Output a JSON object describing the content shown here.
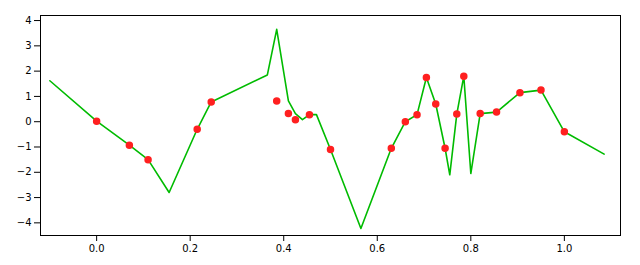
{
  "chart_data": {
    "type": "line",
    "grid": false,
    "xlim": [
      -0.12,
      1.12
    ],
    "ylim": [
      -4.5,
      4.2
    ],
    "xticks": [
      {
        "value": 0.0,
        "label": "0.0"
      },
      0.2,
      0.4,
      0.6,
      0.8,
      {
        "value": 1.0,
        "label": "1.0"
      }
    ],
    "yticks": [
      -4,
      -3,
      -2,
      -1,
      0,
      1,
      2,
      3,
      4
    ],
    "series": [
      {
        "type": "line",
        "color": "#00bb00",
        "line_style": "solid",
        "x": [
          -0.1,
          0.0,
          0.07,
          0.11,
          0.155,
          0.215,
          0.245,
          0.365,
          0.385,
          0.41,
          0.425,
          0.44,
          0.455,
          0.47,
          0.5,
          0.565,
          0.63,
          0.66,
          0.685,
          0.705,
          0.725,
          0.745,
          0.755,
          0.77,
          0.785,
          0.8,
          0.82,
          0.855,
          0.905,
          0.95,
          1.0,
          1.085
        ],
        "values": [
          1.62,
          0.02,
          -0.93,
          -1.5,
          -2.8,
          -0.3,
          0.78,
          1.85,
          3.65,
          0.82,
          0.32,
          0.08,
          0.28,
          0.28,
          -1.1,
          -4.22,
          -1.05,
          0.0,
          0.28,
          1.75,
          0.7,
          -1.05,
          -2.1,
          0.3,
          1.8,
          -2.05,
          0.32,
          0.38,
          1.15,
          1.25,
          -0.4,
          -1.28
        ]
      },
      {
        "type": "scatter",
        "color": "#ff2020",
        "marker": "circle",
        "x": [
          0.0,
          0.07,
          0.11,
          0.215,
          0.245,
          0.385,
          0.41,
          0.425,
          0.455,
          0.5,
          0.63,
          0.66,
          0.685,
          0.705,
          0.725,
          0.745,
          0.77,
          0.785,
          0.82,
          0.855,
          0.905,
          0.95,
          1.0
        ],
        "values": [
          0.02,
          -0.93,
          -1.5,
          -0.3,
          0.78,
          0.82,
          0.32,
          0.08,
          0.28,
          -1.1,
          -1.05,
          0.0,
          0.28,
          1.75,
          0.7,
          -1.05,
          0.3,
          1.8,
          0.32,
          0.38,
          1.15,
          1.25,
          -0.4
        ]
      }
    ]
  }
}
